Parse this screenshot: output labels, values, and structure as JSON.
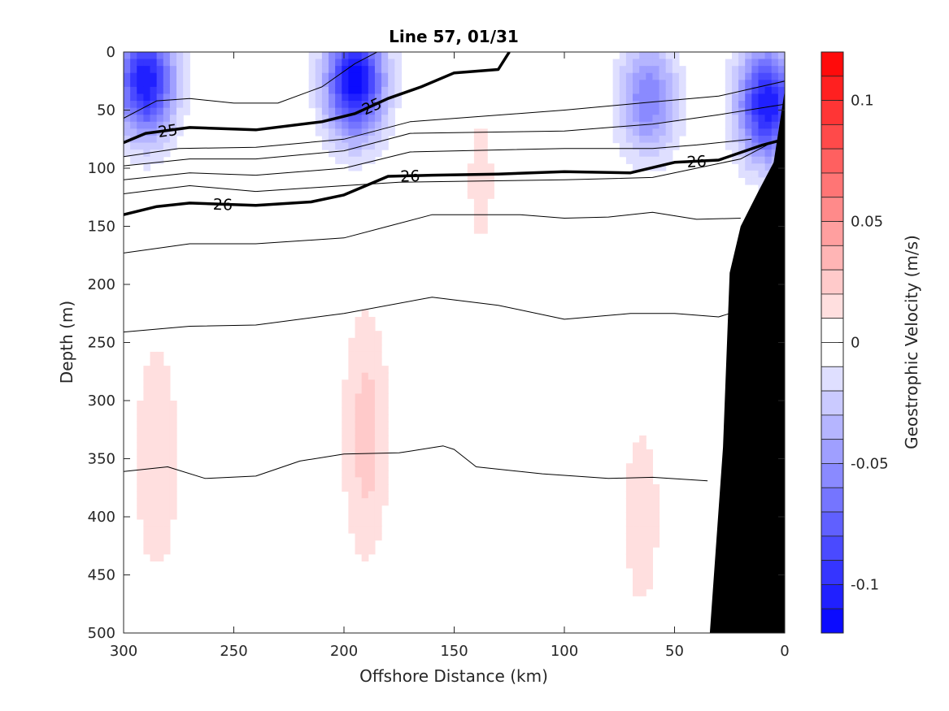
{
  "chart_data": {
    "type": "contour",
    "title": "Line 57, 01/31",
    "xlabel": "Offshore Distance (km)",
    "ylabel": "Depth (m)",
    "colorbar_label": "Geostrophic Velocity (m/s)",
    "xlim": [
      300,
      0
    ],
    "ylim": [
      500,
      0
    ],
    "x_reversed": true,
    "y_reversed": true,
    "x_ticks": [
      300,
      250,
      200,
      150,
      100,
      50,
      0
    ],
    "y_ticks": [
      0,
      50,
      100,
      150,
      200,
      250,
      300,
      350,
      400,
      450,
      500
    ],
    "colorbar": {
      "range": [
        -0.12,
        0.12
      ],
      "step": 0.01,
      "ticks": [
        0.1,
        0.05,
        0,
        -0.05,
        -0.1
      ],
      "tick_labels": [
        "0.1",
        "0.05",
        "0",
        "-0.05",
        "-0.1"
      ],
      "negative_color": "#0000ff",
      "positive_color": "#ff0000",
      "zero_color": "#ffffff"
    },
    "velocity_cores": [
      {
        "x": 290,
        "depth": 25,
        "v": -0.11
      },
      {
        "x": 195,
        "depth": 25,
        "v": -0.12
      },
      {
        "x": 62,
        "depth": 40,
        "v": -0.06
      },
      {
        "x": 8,
        "depth": 45,
        "v": -0.11
      },
      {
        "x": 138,
        "depth": 110,
        "v": 0.012
      },
      {
        "x": 190,
        "depth": 330,
        "v": 0.025
      },
      {
        "x": 285,
        "depth": 350,
        "v": 0.02
      },
      {
        "x": 65,
        "depth": 400,
        "v": 0.015
      },
      {
        "x": 140,
        "depth": 440,
        "v": -0.01
      }
    ],
    "isopycnals": [
      {
        "label": "25",
        "bold": true,
        "points": [
          [
            300,
            78
          ],
          [
            290,
            70
          ],
          [
            270,
            65
          ],
          [
            240,
            67
          ],
          [
            210,
            60
          ],
          [
            195,
            53
          ],
          [
            180,
            40
          ],
          [
            165,
            30
          ],
          [
            150,
            18
          ],
          [
            130,
            15
          ],
          [
            125,
            0
          ]
        ]
      },
      {
        "label": "",
        "bold": false,
        "points": [
          [
            300,
            57
          ],
          [
            285,
            42
          ],
          [
            270,
            40
          ],
          [
            250,
            44
          ],
          [
            230,
            44
          ],
          [
            210,
            30
          ],
          [
            195,
            10
          ],
          [
            185,
            0
          ]
        ]
      },
      {
        "label": "",
        "bold": false,
        "points": [
          [
            300,
            90
          ],
          [
            275,
            83
          ],
          [
            240,
            82
          ],
          [
            200,
            75
          ],
          [
            170,
            60
          ],
          [
            100,
            50
          ],
          [
            60,
            43
          ],
          [
            30,
            38
          ],
          [
            0,
            25
          ]
        ]
      },
      {
        "label": "",
        "bold": false,
        "points": [
          [
            300,
            98
          ],
          [
            270,
            92
          ],
          [
            240,
            92
          ],
          [
            200,
            85
          ],
          [
            170,
            70
          ],
          [
            100,
            68
          ],
          [
            60,
            62
          ],
          [
            30,
            54
          ],
          [
            0,
            45
          ]
        ]
      },
      {
        "label": "",
        "bold": false,
        "points": [
          [
            300,
            110
          ],
          [
            270,
            104
          ],
          [
            240,
            106
          ],
          [
            200,
            100
          ],
          [
            170,
            86
          ],
          [
            100,
            83
          ],
          [
            60,
            83
          ],
          [
            40,
            80
          ],
          [
            15,
            75
          ]
        ]
      },
      {
        "label": "",
        "bold": false,
        "points": [
          [
            300,
            122
          ],
          [
            270,
            115
          ],
          [
            240,
            120
          ],
          [
            200,
            115
          ],
          [
            175,
            112
          ],
          [
            100,
            110
          ],
          [
            60,
            108
          ],
          [
            40,
            100
          ],
          [
            20,
            92
          ],
          [
            8,
            80
          ]
        ]
      },
      {
        "label": "26",
        "bold": true,
        "points": [
          [
            300,
            140
          ],
          [
            285,
            133
          ],
          [
            270,
            130
          ],
          [
            240,
            132
          ],
          [
            215,
            129
          ],
          [
            200,
            123
          ],
          [
            180,
            107
          ],
          [
            160,
            106
          ],
          [
            130,
            105
          ],
          [
            100,
            103
          ],
          [
            70,
            104
          ],
          [
            50,
            95
          ],
          [
            30,
            93
          ],
          [
            10,
            80
          ],
          [
            0,
            75
          ]
        ]
      },
      {
        "label": "",
        "bold": false,
        "points": [
          [
            300,
            173
          ],
          [
            270,
            165
          ],
          [
            240,
            165
          ],
          [
            200,
            160
          ],
          [
            180,
            150
          ],
          [
            160,
            140
          ],
          [
            120,
            140
          ],
          [
            100,
            143
          ],
          [
            80,
            142
          ],
          [
            60,
            138
          ],
          [
            40,
            144
          ],
          [
            20,
            143
          ]
        ]
      },
      {
        "label": "",
        "bold": false,
        "points": [
          [
            300,
            241
          ],
          [
            270,
            236
          ],
          [
            240,
            235
          ],
          [
            200,
            225
          ],
          [
            160,
            211
          ],
          [
            130,
            218
          ],
          [
            100,
            230
          ],
          [
            70,
            225
          ],
          [
            50,
            225
          ],
          [
            30,
            228
          ],
          [
            25,
            225
          ]
        ]
      },
      {
        "label": "",
        "bold": false,
        "points": [
          [
            300,
            361
          ],
          [
            280,
            357
          ],
          [
            263,
            367
          ],
          [
            240,
            365
          ],
          [
            220,
            352
          ],
          [
            200,
            346
          ],
          [
            175,
            345
          ],
          [
            155,
            339
          ],
          [
            150,
            342
          ],
          [
            140,
            357
          ],
          [
            110,
            363
          ],
          [
            80,
            367
          ],
          [
            60,
            366
          ],
          [
            35,
            369
          ]
        ]
      }
    ],
    "bathymetry": [
      [
        34,
        500
      ],
      [
        28,
        340
      ],
      [
        25,
        190
      ],
      [
        20,
        150
      ],
      [
        12,
        120
      ],
      [
        5,
        95
      ],
      [
        0,
        33
      ]
    ]
  }
}
